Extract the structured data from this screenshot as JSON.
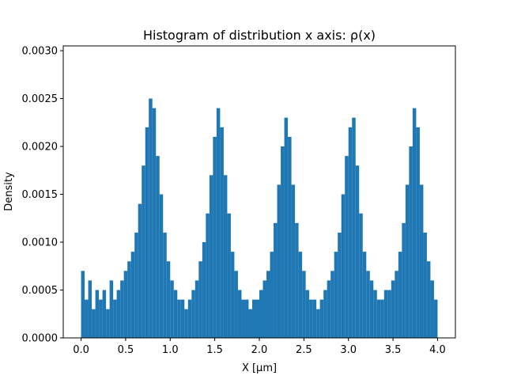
{
  "chart_data": {
    "type": "bar",
    "title": "Histogram of distribution x axis: ρ(x)",
    "xlabel": "X [μm]",
    "ylabel": "Density",
    "xlim": [
      -0.2,
      4.2
    ],
    "ylim": [
      0,
      0.00305
    ],
    "bar_color": "#1f77b4",
    "x_ticks": [
      {
        "value": 0.0,
        "label": "0.0"
      },
      {
        "value": 0.5,
        "label": "0.5"
      },
      {
        "value": 1.0,
        "label": "1.0"
      },
      {
        "value": 1.5,
        "label": "1.5"
      },
      {
        "value": 2.0,
        "label": "2.0"
      },
      {
        "value": 2.5,
        "label": "2.5"
      },
      {
        "value": 3.0,
        "label": "3.0"
      },
      {
        "value": 3.5,
        "label": "3.5"
      },
      {
        "value": 4.0,
        "label": "4.0"
      }
    ],
    "y_ticks": [
      {
        "value": 0.0,
        "label": "0.0000"
      },
      {
        "value": 0.0005,
        "label": "0.0005"
      },
      {
        "value": 0.001,
        "label": "0.0010"
      },
      {
        "value": 0.0015,
        "label": "0.0015"
      },
      {
        "value": 0.002,
        "label": "0.0020"
      },
      {
        "value": 0.0025,
        "label": "0.0025"
      },
      {
        "value": 0.003,
        "label": "0.0030"
      }
    ],
    "grid": false,
    "series": [
      {
        "bin_range": [
          0.0,
          4.0
        ],
        "values": [
          0.0007,
          0.0004,
          0.0006,
          0.0003,
          0.0005,
          0.0004,
          0.0005,
          0.0003,
          0.0006,
          0.0004,
          0.0005,
          0.0006,
          0.0007,
          0.0008,
          0.0009,
          0.0011,
          0.0014,
          0.0018,
          0.0022,
          0.0025,
          0.0024,
          0.0019,
          0.0015,
          0.0011,
          0.0008,
          0.0006,
          0.0005,
          0.0004,
          0.0004,
          0.0003,
          0.0004,
          0.0005,
          0.0006,
          0.0008,
          0.001,
          0.0013,
          0.0017,
          0.0021,
          0.0024,
          0.0022,
          0.0017,
          0.0013,
          0.0009,
          0.0007,
          0.0005,
          0.0004,
          0.0004,
          0.0003,
          0.0004,
          0.0004,
          0.0005,
          0.0006,
          0.0007,
          0.0009,
          0.0012,
          0.0016,
          0.002,
          0.0023,
          0.0021,
          0.0016,
          0.0012,
          0.0009,
          0.0007,
          0.0005,
          0.0004,
          0.0004,
          0.0003,
          0.0004,
          0.0005,
          0.0006,
          0.0007,
          0.0009,
          0.0011,
          0.0015,
          0.0019,
          0.0022,
          0.0023,
          0.0018,
          0.0013,
          0.0009,
          0.0007,
          0.0006,
          0.0005,
          0.0004,
          0.0004,
          0.0005,
          0.0005,
          0.0006,
          0.0007,
          0.0009,
          0.0012,
          0.0016,
          0.002,
          0.0024,
          0.0022,
          0.0016,
          0.0011,
          0.0008,
          0.0006,
          0.0004
        ]
      }
    ]
  }
}
